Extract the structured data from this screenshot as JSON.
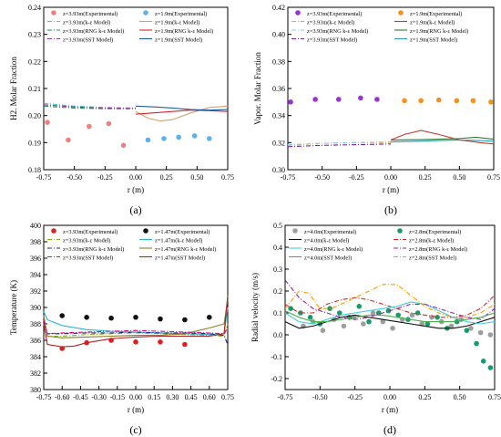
{
  "chart_data": [
    {
      "type": "line",
      "panel_label": "(a)",
      "xlabel": "r (m)",
      "ylabel": "H2. Molar Fraction",
      "xlim": [
        -0.75,
        0.75
      ],
      "ylim": [
        0.18,
        0.24
      ],
      "xticks": [
        "-0.75",
        "-0.50",
        "-0.25",
        "0.00",
        "0.25",
        "0.50",
        "0.75"
      ],
      "yticks": [
        "0.18",
        "0.19",
        "0.20",
        "0.21",
        "0.22",
        "0.23",
        "0.24"
      ],
      "legend_position": "top",
      "series": [
        {
          "name": "z=3.93m(Experimental)",
          "kind": "scatter",
          "color": "#f08080",
          "x": [
            -0.72,
            -0.55,
            -0.38,
            -0.22,
            -0.1
          ],
          "y": [
            0.1975,
            0.191,
            0.196,
            0.197,
            0.189
          ]
        },
        {
          "name": "z=1.9m(Experimental)",
          "kind": "scatter",
          "color": "#5ab4e6",
          "x": [
            0.1,
            0.23,
            0.35,
            0.48,
            0.6
          ],
          "y": [
            0.191,
            0.1915,
            0.192,
            0.1925,
            0.1915
          ]
        },
        {
          "name": "z=3.93m(k-ε Model)",
          "kind": "line",
          "style": "dashdot",
          "color": "#46c8dc",
          "x": [
            -0.75,
            -0.5,
            -0.25,
            0.0
          ],
          "y": [
            0.2045,
            0.2035,
            0.203,
            0.2028
          ]
        },
        {
          "name": "z=1.9m(k-ε Model)",
          "kind": "line",
          "style": "solid",
          "color": "#d4a06a",
          "x": [
            0.0,
            0.1,
            0.2,
            0.3,
            0.45,
            0.6,
            0.75
          ],
          "y": [
            0.2015,
            0.199,
            0.198,
            0.1985,
            0.201,
            0.203,
            0.2035
          ]
        },
        {
          "name": "z=3.93m(RNG k-ε Model)",
          "kind": "line",
          "style": "dashdot",
          "color": "#2e8b57",
          "x": [
            -0.75,
            -0.5,
            -0.25,
            0.0
          ],
          "y": [
            0.2035,
            0.2028,
            0.2025,
            0.2025
          ]
        },
        {
          "name": "z=1.9m(RNG k-ε Model)",
          "kind": "line",
          "style": "solid",
          "color": "#d62728",
          "x": [
            0.0,
            0.15,
            0.3,
            0.45,
            0.6,
            0.75
          ],
          "y": [
            0.2005,
            0.201,
            0.2015,
            0.202,
            0.2018,
            0.2015
          ]
        },
        {
          "name": "z=3.93m(SST Model)",
          "kind": "line",
          "style": "dashdot",
          "color": "#8b3a9a",
          "x": [
            -0.75,
            -0.5,
            -0.25,
            0.0
          ],
          "y": [
            0.204,
            0.2032,
            0.2028,
            0.2027
          ]
        },
        {
          "name": "z=1.9m(SST Model)",
          "kind": "line",
          "style": "solid",
          "color": "#1f5fa0",
          "x": [
            0.0,
            0.15,
            0.3,
            0.45,
            0.6,
            0.75
          ],
          "y": [
            0.2035,
            0.2032,
            0.2028,
            0.2022,
            0.202,
            0.2022
          ]
        }
      ]
    },
    {
      "type": "line",
      "panel_label": "(b)",
      "xlabel": "r (m)",
      "ylabel": "Vapor. Molar Fraction",
      "xlim": [
        -0.75,
        0.75
      ],
      "ylim": [
        0.3,
        0.42
      ],
      "xticks": [
        "-0.75",
        "-0.50",
        "-0.25",
        "0.00",
        "0.25",
        "0.50",
        "0.75"
      ],
      "yticks": [
        "0.30",
        "0.32",
        "0.34",
        "0.36",
        "0.38",
        "0.40",
        "0.42"
      ],
      "legend_position": "top",
      "series": [
        {
          "name": "z=3.93m(Experimental)",
          "kind": "scatter",
          "color": "#9b30d9",
          "x": [
            -0.73,
            -0.55,
            -0.38,
            -0.22,
            -0.1
          ],
          "y": [
            0.35,
            0.352,
            0.352,
            0.353,
            0.352
          ]
        },
        {
          "name": "z=1.9m(Experimental)",
          "kind": "scatter",
          "color": "#f5901e",
          "x": [
            0.1,
            0.22,
            0.35,
            0.48,
            0.6,
            0.73
          ],
          "y": [
            0.351,
            0.351,
            0.3515,
            0.351,
            0.351,
            0.35
          ]
        },
        {
          "name": "z=3.93m(k-ε Model)",
          "kind": "line",
          "style": "dashdot",
          "color": "#f5a623",
          "x": [
            -0.75,
            -0.5,
            -0.25,
            0.0
          ],
          "y": [
            0.318,
            0.3195,
            0.32,
            0.32
          ]
        },
        {
          "name": "z=1.9m(k-ε Model)",
          "kind": "line",
          "style": "solid",
          "color": "#c0392b",
          "x": [
            0.0,
            0.1,
            0.22,
            0.35,
            0.5,
            0.65,
            0.75
          ],
          "y": [
            0.322,
            0.326,
            0.329,
            0.326,
            0.322,
            0.32,
            0.319
          ]
        },
        {
          "name": "z=3.93m(RNG k-ε Model)",
          "kind": "line",
          "style": "dashdot",
          "color": "#8ecae6",
          "x": [
            -0.75,
            -0.5,
            -0.25,
            0.0
          ],
          "y": [
            0.3185,
            0.3195,
            0.32,
            0.3205
          ]
        },
        {
          "name": "z=1.9m(RNG k-ε Model)",
          "kind": "line",
          "style": "solid",
          "color": "#2e7d32",
          "x": [
            0.0,
            0.2,
            0.35,
            0.5,
            0.62,
            0.75
          ],
          "y": [
            0.322,
            0.3222,
            0.3225,
            0.323,
            0.324,
            0.3225
          ]
        },
        {
          "name": "z=3.93m(SST Model)",
          "kind": "line",
          "style": "dashdot",
          "color": "#7b1fa2",
          "x": [
            -0.75,
            -0.5,
            -0.25,
            0.0
          ],
          "y": [
            0.317,
            0.318,
            0.3185,
            0.319
          ]
        },
        {
          "name": "z=1.9m(SST Model)",
          "kind": "line",
          "style": "solid",
          "color": "#2a9db5",
          "x": [
            0.0,
            0.2,
            0.35,
            0.5,
            0.65,
            0.75
          ],
          "y": [
            0.3205,
            0.321,
            0.3215,
            0.322,
            0.3215,
            0.321
          ]
        }
      ]
    },
    {
      "type": "line",
      "panel_label": "(c)",
      "xlabel": "r (m)",
      "ylabel": "Temperature (K)",
      "xlim": [
        -0.75,
        0.75
      ],
      "ylim": [
        380,
        400
      ],
      "xticks": [
        "-0.75",
        "-0.60",
        "-0.45",
        "-0.30",
        "-0.15",
        "0.00",
        "0.15",
        "0.30",
        "0.45",
        "0.60",
        "0.75"
      ],
      "yticks": [
        "380",
        "382",
        "384",
        "386",
        "388",
        "390",
        "392",
        "394",
        "396",
        "398",
        "400"
      ],
      "legend_position": "top",
      "series": [
        {
          "name": "z=3.93m(Experimental)",
          "kind": "scatter",
          "color": "#e02020",
          "x": [
            -0.6,
            -0.4,
            -0.2,
            0.0,
            0.2,
            0.4
          ],
          "y": [
            385.0,
            385.7,
            386.0,
            385.8,
            385.8,
            385.5
          ]
        },
        {
          "name": "z=1.47m(Experimental)",
          "kind": "scatter",
          "color": "#111111",
          "x": [
            -0.6,
            -0.4,
            -0.2,
            0.0,
            0.2,
            0.4,
            0.6
          ],
          "y": [
            389.0,
            388.8,
            388.7,
            388.8,
            388.6,
            388.5,
            388.8
          ]
        },
        {
          "name": "z=3.93m(k-ε Model)",
          "kind": "line",
          "style": "dashdot",
          "color": "#7cb518",
          "x": [
            -0.75,
            -0.72,
            -0.6,
            -0.4,
            -0.2,
            0.0,
            0.2,
            0.4,
            0.6,
            0.72,
            0.75
          ],
          "y": [
            389.0,
            386.5,
            386.5,
            386.7,
            386.8,
            386.9,
            386.8,
            386.7,
            386.6,
            386.5,
            388.0
          ]
        },
        {
          "name": "z=1.47m(k-ε Model)",
          "kind": "line",
          "style": "solid",
          "color": "#29b6d6",
          "x": [
            -0.75,
            -0.72,
            -0.6,
            -0.4,
            -0.2,
            0.0,
            0.2,
            0.4,
            0.6,
            0.72,
            0.75
          ],
          "y": [
            389.5,
            388.5,
            387.8,
            387.3,
            387.1,
            387.0,
            386.9,
            386.8,
            386.7,
            386.8,
            390.0
          ]
        },
        {
          "name": "z=3.93m(RNG k-ε Model)",
          "kind": "line",
          "style": "dashdot",
          "color": "#1a237e",
          "x": [
            -0.75,
            -0.72,
            -0.6,
            -0.4,
            -0.2,
            0.0,
            0.2,
            0.4,
            0.6,
            0.72,
            0.75
          ],
          "y": [
            388.0,
            386.8,
            386.8,
            386.9,
            386.9,
            387.0,
            386.9,
            386.9,
            386.8,
            386.6,
            385.5
          ]
        },
        {
          "name": "z=1.47m(RNG k-ε Model)",
          "kind": "line",
          "style": "solid",
          "color": "#8b7d2a",
          "x": [
            -0.75,
            -0.72,
            -0.6,
            -0.4,
            -0.2,
            0.0,
            0.2,
            0.4,
            0.6,
            0.72,
            0.75
          ],
          "y": [
            389.0,
            386.5,
            386.3,
            386.4,
            386.5,
            386.6,
            386.6,
            386.8,
            387.5,
            388.0,
            391.0
          ]
        },
        {
          "name": "z=3.93m(SST Model)",
          "kind": "line",
          "style": "dashdot",
          "color": "#c71585",
          "x": [
            -0.75,
            -0.72,
            -0.6,
            -0.4,
            -0.2,
            0.0,
            0.2,
            0.4,
            0.6,
            0.72,
            0.75
          ],
          "y": [
            388.5,
            386.8,
            386.9,
            387.0,
            387.1,
            387.2,
            387.1,
            387.0,
            386.9,
            386.8,
            387.5
          ]
        },
        {
          "name": "z=1.47m(SST Model)",
          "kind": "line",
          "style": "solid",
          "color": "#b22222",
          "x": [
            -0.75,
            -0.72,
            -0.6,
            -0.5,
            -0.4,
            -0.2,
            0.0,
            0.2,
            0.4,
            0.6,
            0.72,
            0.75
          ],
          "y": [
            388.0,
            385.5,
            385.2,
            385.3,
            385.7,
            386.2,
            386.4,
            386.5,
            386.5,
            386.5,
            386.8,
            391.5
          ]
        }
      ]
    },
    {
      "type": "line",
      "panel_label": "(d)",
      "xlabel": "r (m)",
      "ylabel": "Radial velocity (m/s)",
      "xlim": [
        -0.75,
        0.75
      ],
      "ylim": [
        -0.25,
        0.5
      ],
      "xticks": [
        "-0.75",
        "-0.50",
        "-0.25",
        "0.00",
        "0.25",
        "0.50",
        "0.75"
      ],
      "yticks": [
        "-0.2",
        "-0.1",
        "0.0",
        "0.1",
        "0.2",
        "0.3",
        "0.4",
        "0.5"
      ],
      "legend_position": "top",
      "series": [
        {
          "name": "z=4.0m(Experimental)",
          "kind": "scatter",
          "color": "#9e9e9e",
          "x": [
            -0.62,
            -0.55,
            -0.48,
            -0.4,
            -0.33,
            -0.26,
            -0.19,
            -0.12,
            -0.05,
            0.02,
            0.09,
            0.16,
            0.23,
            0.3,
            0.37,
            0.44,
            0.51,
            0.58,
            0.65,
            0.72
          ],
          "y": [
            0.04,
            0.06,
            0.02,
            0.07,
            0.04,
            0.08,
            0.05,
            0.1,
            0.06,
            0.03,
            0.07,
            0.09,
            0.05,
            0.08,
            0.06,
            0.04,
            0.07,
            0.03,
            0.01,
            0.0
          ]
        },
        {
          "name": "z=2.8m(Experimental)",
          "kind": "scatter",
          "color": "#1a9a6a",
          "x": [
            -0.71,
            -0.64,
            -0.57,
            -0.5,
            -0.43,
            -0.36,
            -0.29,
            -0.22,
            -0.15,
            -0.08,
            -0.01,
            0.06,
            0.13,
            0.2,
            0.27,
            0.34,
            0.41,
            0.48,
            0.55,
            0.62,
            0.67,
            0.72
          ],
          "y": [
            0.12,
            0.1,
            0.08,
            0.05,
            0.12,
            0.1,
            0.08,
            0.13,
            0.06,
            0.1,
            0.11,
            0.09,
            0.07,
            0.1,
            0.05,
            0.08,
            0.03,
            0.06,
            0.02,
            -0.04,
            -0.12,
            -0.15
          ]
        },
        {
          "name": "z=4.0m(k-ε Model)",
          "kind": "line",
          "style": "solid",
          "color": "#111111",
          "x": [
            -0.75,
            -0.65,
            -0.55,
            -0.45,
            -0.35,
            -0.25,
            -0.15,
            -0.05,
            0.05,
            0.15,
            0.25,
            0.35,
            0.45,
            0.55,
            0.65,
            0.75
          ],
          "y": [
            0.06,
            0.03,
            0.04,
            0.06,
            0.08,
            0.09,
            0.08,
            0.07,
            0.06,
            0.05,
            0.04,
            0.03,
            0.03,
            0.04,
            0.06,
            0.08
          ]
        },
        {
          "name": "z=2.8m(k-ε Model)",
          "kind": "line",
          "style": "dashdot",
          "color": "#d62728",
          "x": [
            -0.75,
            -0.65,
            -0.55,
            -0.45,
            -0.35,
            -0.25,
            -0.15,
            -0.05,
            0.05,
            0.15,
            0.25,
            0.35,
            0.45,
            0.55,
            0.65,
            0.75
          ],
          "y": [
            0.14,
            0.1,
            0.1,
            0.14,
            0.16,
            0.17,
            0.16,
            0.14,
            0.12,
            0.1,
            0.09,
            0.08,
            0.08,
            0.09,
            0.12,
            0.18
          ]
        },
        {
          "name": "z=4.0m(RNG k-ε Model)",
          "kind": "line",
          "style": "solid",
          "color": "#40d0e0",
          "x": [
            -0.75,
            -0.65,
            -0.55,
            -0.45,
            -0.35,
            -0.25,
            -0.15,
            -0.05,
            0.05,
            0.15,
            0.25,
            0.35,
            0.45,
            0.55,
            0.65,
            0.75
          ],
          "y": [
            0.1,
            0.06,
            0.05,
            0.07,
            0.09,
            0.1,
            0.11,
            0.12,
            0.13,
            0.15,
            0.14,
            0.11,
            0.08,
            0.06,
            0.05,
            0.06
          ]
        },
        {
          "name": "z=2.8m(RNG k-ε Model)",
          "kind": "line",
          "style": "dashdot",
          "color": "#8e24aa",
          "x": [
            -0.75,
            -0.65,
            -0.55,
            -0.45,
            -0.35,
            -0.25,
            -0.15,
            -0.05,
            0.05,
            0.15,
            0.25,
            0.35,
            0.45,
            0.55,
            0.65,
            0.75
          ],
          "y": [
            0.25,
            0.17,
            0.12,
            0.1,
            0.08,
            0.07,
            0.08,
            0.1,
            0.12,
            0.14,
            0.14,
            0.12,
            0.1,
            0.08,
            0.07,
            0.12
          ]
        },
        {
          "name": "z=4.0m(SST Model)",
          "kind": "line",
          "style": "solid",
          "color": "#4caf50",
          "x": [
            -0.75,
            -0.65,
            -0.55,
            -0.45,
            -0.35,
            -0.25,
            -0.15,
            -0.05,
            0.05,
            0.15,
            0.25,
            0.35,
            0.45,
            0.55,
            0.65,
            0.75
          ],
          "y": [
            0.11,
            0.08,
            0.06,
            0.06,
            0.07,
            0.08,
            0.09,
            0.09,
            0.08,
            0.07,
            0.06,
            0.06,
            0.06,
            0.07,
            0.08,
            0.1
          ]
        },
        {
          "name": "z=2.8m(SST Model)",
          "kind": "line",
          "style": "dashdot",
          "color": "#ff9800",
          "x": [
            -0.75,
            -0.65,
            -0.58,
            -0.5,
            -0.42,
            -0.35,
            -0.25,
            -0.15,
            -0.05,
            0.05,
            0.15,
            0.25,
            0.35,
            0.45,
            0.55,
            0.65,
            0.75
          ],
          "y": [
            0.12,
            0.2,
            0.19,
            0.12,
            0.12,
            0.14,
            0.17,
            0.2,
            0.23,
            0.23,
            0.18,
            0.13,
            0.1,
            0.08,
            0.08,
            0.1,
            0.14
          ]
        }
      ]
    }
  ]
}
